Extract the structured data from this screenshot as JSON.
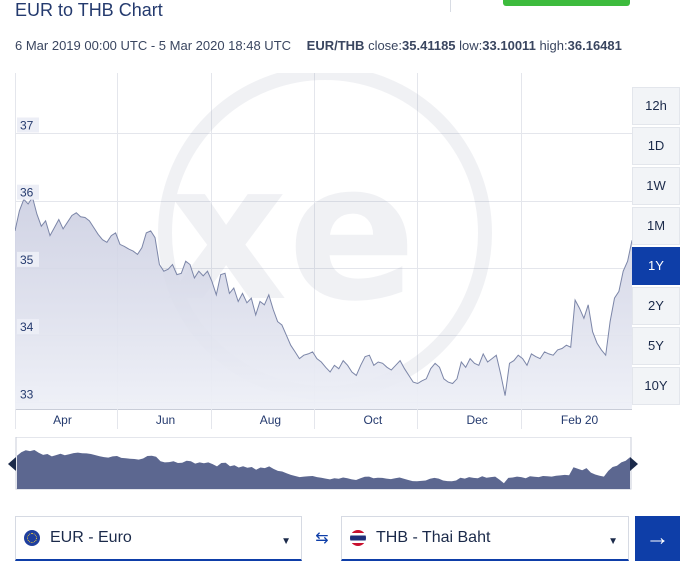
{
  "header": {
    "title": "EUR to THB Chart"
  },
  "info": {
    "date_range": "6 Mar 2019 00:00 UTC - 5 Mar 2020 18:48 UTC",
    "pair": "EUR/THB",
    "close_label": "close:",
    "close_value": "35.41185",
    "low_label": "low:",
    "low_value": "33.10011",
    "high_label": "high:",
    "high_value": "36.16481"
  },
  "range_buttons": [
    "12h",
    "1D",
    "1W",
    "1M",
    "1Y",
    "2Y",
    "5Y",
    "10Y"
  ],
  "active_range": "1Y",
  "colors": {
    "brand_blue": "#0e3ea8",
    "accent_green": "#3dbb3d",
    "line": "#7c86a8",
    "navigator_fill": "#5c6790"
  },
  "chart_data": {
    "type": "area",
    "title": "",
    "xlabel": "",
    "ylabel": "",
    "ylim": [
      32.9,
      37.9
    ],
    "x_tick_labels": [
      "Apr",
      "Jun",
      "Aug",
      "Oct",
      "Dec",
      "Feb 20"
    ],
    "y_tick_labels": [
      "37",
      "36",
      "35",
      "34",
      "33"
    ],
    "y_tick_values": [
      37,
      36,
      35,
      34,
      33
    ],
    "grid": true,
    "series": [
      {
        "values": [
          35.55,
          35.85,
          36.02,
          35.95,
          36.05,
          35.8,
          35.62,
          35.7,
          35.48,
          35.6,
          35.72,
          35.58,
          35.68,
          35.78,
          35.82,
          35.76,
          35.75,
          35.7,
          35.6,
          35.5,
          35.42,
          35.38,
          35.48,
          35.52,
          35.35,
          35.32,
          35.28,
          35.25,
          35.2,
          35.3,
          35.52,
          35.55,
          35.45,
          35.05,
          34.95,
          34.98,
          35.05,
          34.9,
          34.92,
          35.1,
          35.05,
          34.85,
          34.95,
          34.88,
          34.95,
          34.8,
          34.6,
          34.9,
          34.92,
          34.62,
          34.7,
          34.5,
          34.62,
          34.48,
          34.55,
          34.3,
          34.5,
          34.45,
          34.6,
          34.38,
          34.2,
          34.15,
          34.0,
          33.85,
          33.75,
          33.65,
          33.7,
          33.72,
          33.75,
          33.65,
          33.6,
          33.52,
          33.45,
          33.55,
          33.5,
          33.62,
          33.55,
          33.45,
          33.4,
          33.55,
          33.68,
          33.7,
          33.55,
          33.6,
          33.58,
          33.52,
          33.48,
          33.55,
          33.62,
          33.5,
          33.4,
          33.3,
          33.28,
          33.32,
          33.35,
          33.5,
          33.58,
          33.52,
          33.35,
          33.3,
          33.28,
          33.35,
          33.6,
          33.52,
          33.65,
          33.58,
          33.55,
          33.72,
          33.6,
          33.65,
          33.7,
          33.42,
          33.1,
          33.58,
          33.62,
          33.7,
          33.65,
          33.55,
          33.72,
          33.68,
          33.65,
          33.75,
          33.72,
          33.7,
          33.78,
          33.8,
          33.85,
          33.82,
          34.52,
          34.4,
          34.25,
          34.45,
          34.05,
          33.88,
          33.78,
          33.7,
          34.2,
          34.55,
          34.65,
          34.95,
          35.1,
          35.41
        ]
      }
    ]
  },
  "converter": {
    "from_label": "EUR - Euro",
    "to_label": "THB - Thai Baht",
    "swap_icon": "⇆",
    "go_icon": "→",
    "caret": "▼"
  }
}
